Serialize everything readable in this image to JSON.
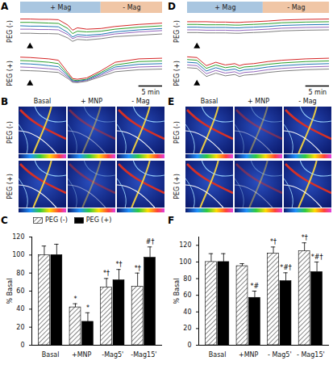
{
  "chart_data": [
    {
      "type": "line",
      "panel": "A",
      "tick_labels": false,
      "x": [
        0,
        2,
        4,
        6,
        8,
        10,
        11,
        12,
        14,
        17,
        20,
        25,
        30
      ],
      "xlim": [
        0,
        30
      ],
      "ylim": [
        0,
        100
      ],
      "phases": [
        {
          "label": "+ Mag",
          "start": 0,
          "end": 17,
          "color": "#a9c6e0"
        },
        {
          "label": "- Mag",
          "start": 17,
          "end": 30,
          "color": "#f0c6a6"
        }
      ],
      "events": [
        {
          "x": 2,
          "marker": "triangle"
        }
      ],
      "scale_bar": {
        "label": "5 min",
        "length": 5
      },
      "subplots": [
        {
          "y_label": "PEG (-)",
          "series": [
            {
              "color": "#d62728",
              "values": [
                88,
                88,
                87,
                87,
                86,
                70,
                55,
                62,
                58,
                60,
                66,
                72,
                76
              ]
            },
            {
              "color": "#2ca02c",
              "values": [
                78,
                78,
                77,
                76,
                75,
                60,
                45,
                52,
                50,
                52,
                58,
                64,
                68
              ]
            },
            {
              "color": "#1f77b4",
              "values": [
                68,
                67,
                67,
                66,
                65,
                48,
                35,
                42,
                40,
                43,
                50,
                56,
                60
              ]
            },
            {
              "color": "#9467bd",
              "values": [
                58,
                58,
                57,
                57,
                56,
                42,
                30,
                36,
                34,
                38,
                44,
                50,
                54
              ]
            },
            {
              "color": "#7f7f7f",
              "values": [
                46,
                46,
                45,
                45,
                44,
                32,
                22,
                28,
                26,
                30,
                36,
                40,
                44
              ]
            }
          ]
        },
        {
          "y_label": "PEG (+)",
          "series": [
            {
              "color": "#d62728",
              "values": [
                85,
                84,
                82,
                80,
                76,
                40,
                22,
                20,
                24,
                45,
                70,
                80,
                82
              ]
            },
            {
              "color": "#2ca02c",
              "values": [
                75,
                74,
                72,
                70,
                66,
                34,
                18,
                16,
                20,
                40,
                62,
                72,
                74
              ]
            },
            {
              "color": "#1f77b4",
              "values": [
                66,
                65,
                63,
                60,
                57,
                30,
                15,
                14,
                18,
                36,
                56,
                64,
                66
              ]
            },
            {
              "color": "#9467bd",
              "values": [
                56,
                55,
                53,
                51,
                48,
                26,
                13,
                12,
                16,
                32,
                50,
                56,
                58
              ]
            },
            {
              "color": "#7f7f7f",
              "values": [
                46,
                45,
                44,
                42,
                40,
                22,
                11,
                10,
                14,
                28,
                42,
                48,
                50
              ]
            }
          ]
        }
      ]
    },
    {
      "type": "bar",
      "panel": "C",
      "legend": "top",
      "categories": [
        "Basal",
        "+MNP",
        "-Mag5'",
        "-Mag15'"
      ],
      "ylabel": "% Basal",
      "ylim": [
        0,
        120
      ],
      "yticks": [
        0,
        20,
        40,
        60,
        80,
        100,
        120
      ],
      "series": [
        {
          "name": "PEG (-)",
          "color": "#555555",
          "line_style": "hatched",
          "values": [
            100,
            42,
            64,
            65
          ],
          "errors": [
            10,
            4,
            10,
            15
          ],
          "annotations": [
            null,
            "*",
            "*†",
            "*†"
          ]
        },
        {
          "name": "PEG (+)",
          "color": "#000000",
          "values": [
            100,
            26,
            72,
            97
          ],
          "errors": [
            12,
            10,
            12,
            12
          ],
          "annotations": [
            null,
            "*",
            "*†",
            "#†"
          ]
        }
      ]
    },
    {
      "type": "line",
      "panel": "D",
      "tick_labels": false,
      "x": [
        0,
        2,
        4,
        6,
        8,
        10,
        11,
        12,
        14,
        17,
        20,
        25,
        30
      ],
      "xlim": [
        0,
        30
      ],
      "ylim": [
        0,
        100
      ],
      "phases": [
        {
          "label": "+ Mag",
          "start": 0,
          "end": 16,
          "color": "#a9c6e0"
        },
        {
          "label": "- Mag",
          "start": 16,
          "end": 30,
          "color": "#f0c6a6"
        }
      ],
      "events": [
        {
          "x": 2,
          "marker": "triangle"
        }
      ],
      "scale_bar": {
        "label": "5 min",
        "length": 5
      },
      "subplots": [
        {
          "y_label": "PEG (-)",
          "series": [
            {
              "color": "#d62728",
              "values": [
                80,
                80,
                80,
                79,
                79,
                78,
                78,
                79,
                80,
                82,
                85,
                87,
                88
              ]
            },
            {
              "color": "#2ca02c",
              "values": [
                72,
                72,
                71,
                71,
                71,
                70,
                70,
                71,
                72,
                74,
                77,
                79,
                80
              ]
            },
            {
              "color": "#1f77b4",
              "values": [
                64,
                64,
                63,
                63,
                63,
                62,
                62,
                63,
                64,
                66,
                69,
                71,
                72
              ]
            },
            {
              "color": "#9467bd",
              "values": [
                56,
                56,
                55,
                55,
                55,
                54,
                54,
                55,
                56,
                58,
                61,
                63,
                64
              ]
            },
            {
              "color": "#7f7f7f",
              "values": [
                48,
                48,
                47,
                47,
                47,
                46,
                46,
                47,
                48,
                50,
                53,
                55,
                56
              ]
            }
          ]
        },
        {
          "y_label": "PEG (+)",
          "series": [
            {
              "color": "#d62728",
              "values": [
                86,
                84,
                60,
                70,
                62,
                66,
                60,
                64,
                66,
                72,
                76,
                80,
                82
              ]
            },
            {
              "color": "#2ca02c",
              "values": [
                78,
                76,
                52,
                62,
                54,
                58,
                52,
                56,
                58,
                64,
                68,
                72,
                74
              ]
            },
            {
              "color": "#1f77b4",
              "values": [
                70,
                68,
                44,
                54,
                46,
                50,
                44,
                48,
                50,
                56,
                60,
                64,
                66
              ]
            },
            {
              "color": "#9467bd",
              "values": [
                62,
                60,
                36,
                46,
                38,
                42,
                36,
                40,
                42,
                48,
                52,
                56,
                58
              ]
            },
            {
              "color": "#7f7f7f",
              "values": [
                54,
                52,
                28,
                38,
                30,
                34,
                28,
                32,
                34,
                40,
                44,
                48,
                50
              ]
            }
          ]
        }
      ]
    },
    {
      "type": "bar",
      "panel": "F",
      "categories": [
        "Basal",
        "+MNP",
        "- Mag5'",
        "- Mag15'"
      ],
      "ylabel": "% Basal",
      "ylim": [
        0,
        130
      ],
      "yticks": [
        0,
        20,
        40,
        60,
        80,
        100,
        120
      ],
      "series": [
        {
          "color": "#555555",
          "line_style": "hatched",
          "values": [
            100,
            95,
            110,
            113
          ],
          "errors": [
            10,
            3,
            8,
            10
          ],
          "annotations": [
            null,
            null,
            "*†",
            "*†"
          ]
        },
        {
          "color": "#000000",
          "values": [
            100,
            57,
            77,
            88
          ],
          "errors": [
            10,
            8,
            10,
            12
          ],
          "annotations": [
            null,
            "*#",
            "*#†",
            "*#†"
          ]
        }
      ]
    }
  ],
  "image_panels": [
    {
      "panel": "B",
      "columns": [
        "Basal",
        "+ MNP",
        "- Mag"
      ],
      "rows": [
        "PEG (-)",
        "PEG (+)"
      ]
    },
    {
      "panel": "E",
      "columns": [
        "Basal",
        "+ MNP",
        "- Mag"
      ],
      "rows": [
        "PEG (-)",
        "PEG (+)"
      ]
    }
  ]
}
